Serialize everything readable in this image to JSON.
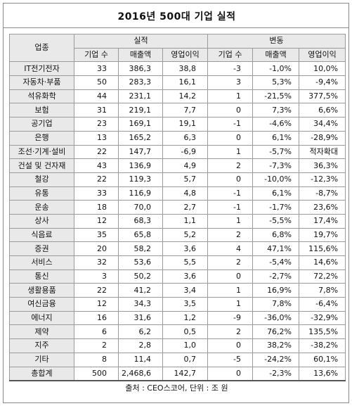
{
  "title": "2016년 500대 기업 실적",
  "header": {
    "category": "업종",
    "performance_group": "실적",
    "change_group": "변동",
    "sub": [
      "기업 수",
      "매출액",
      "영업이익",
      "기업 수",
      "매출액",
      "영업이익"
    ]
  },
  "rows": [
    {
      "name": "IT전기전자",
      "companies": "33",
      "sales": "386,3",
      "profit": "38,8",
      "d_companies": "-3",
      "d_sales": "-1,0%",
      "d_profit": "10,0%"
    },
    {
      "name": "자동차·부품",
      "companies": "50",
      "sales": "283,3",
      "profit": "16,1",
      "d_companies": "3",
      "d_sales": "5,3%",
      "d_profit": "-9,4%"
    },
    {
      "name": "석유화학",
      "companies": "44",
      "sales": "231,1",
      "profit": "14,2",
      "d_companies": "1",
      "d_sales": "-21,5%",
      "d_profit": "377,5%"
    },
    {
      "name": "보험",
      "companies": "31",
      "sales": "219,1",
      "profit": "7,7",
      "d_companies": "0",
      "d_sales": "7,3%",
      "d_profit": "6,6%"
    },
    {
      "name": "공기업",
      "companies": "23",
      "sales": "169,1",
      "profit": "19,1",
      "d_companies": "-1",
      "d_sales": "-4,6%",
      "d_profit": "34,4%"
    },
    {
      "name": "은행",
      "companies": "13",
      "sales": "165,2",
      "profit": "6,3",
      "d_companies": "0",
      "d_sales": "6,1%",
      "d_profit": "-28,9%"
    },
    {
      "name": "조선·기계·설비",
      "companies": "22",
      "sales": "147,7",
      "profit": "-6,9",
      "d_companies": "1",
      "d_sales": "-5,7%",
      "d_profit": "적자확대"
    },
    {
      "name": "건설 및 건자재",
      "companies": "43",
      "sales": "136,9",
      "profit": "4,9",
      "d_companies": "2",
      "d_sales": "-7,3%",
      "d_profit": "36,3%"
    },
    {
      "name": "철강",
      "companies": "22",
      "sales": "119,3",
      "profit": "5,7",
      "d_companies": "0",
      "d_sales": "-10,0%",
      "d_profit": "-12,3%"
    },
    {
      "name": "유통",
      "companies": "33",
      "sales": "116,9",
      "profit": "4,8",
      "d_companies": "-1",
      "d_sales": "6,1%",
      "d_profit": "-8,7%"
    },
    {
      "name": "운송",
      "companies": "18",
      "sales": "70,0",
      "profit": "2,7",
      "d_companies": "-1",
      "d_sales": "-1,7%",
      "d_profit": "23,6%"
    },
    {
      "name": "상사",
      "companies": "12",
      "sales": "68,3",
      "profit": "1,1",
      "d_companies": "1",
      "d_sales": "-5,5%",
      "d_profit": "17,4%"
    },
    {
      "name": "식음료",
      "companies": "35",
      "sales": "65,8",
      "profit": "5,2",
      "d_companies": "2",
      "d_sales": "6,8%",
      "d_profit": "19,7%"
    },
    {
      "name": "증권",
      "companies": "20",
      "sales": "58,2",
      "profit": "3,6",
      "d_companies": "4",
      "d_sales": "47,1%",
      "d_profit": "115,6%"
    },
    {
      "name": "서비스",
      "companies": "32",
      "sales": "53,6",
      "profit": "5,5",
      "d_companies": "2",
      "d_sales": "-5,4%",
      "d_profit": "14,6%"
    },
    {
      "name": "통신",
      "companies": "3",
      "sales": "50,2",
      "profit": "3,6",
      "d_companies": "0",
      "d_sales": "-2,7%",
      "d_profit": "72,2%"
    },
    {
      "name": "생활용품",
      "companies": "22",
      "sales": "41,2",
      "profit": "3,4",
      "d_companies": "1",
      "d_sales": "16,9%",
      "d_profit": "7,8%"
    },
    {
      "name": "여신금융",
      "companies": "12",
      "sales": "34,3",
      "profit": "3,5",
      "d_companies": "1",
      "d_sales": "7,8%",
      "d_profit": "-6,4%"
    },
    {
      "name": "에너지",
      "companies": "16",
      "sales": "31,6",
      "profit": "1,2",
      "d_companies": "-9",
      "d_sales": "-36,0%",
      "d_profit": "-32,9%"
    },
    {
      "name": "제약",
      "companies": "6",
      "sales": "6,2",
      "profit": "0,5",
      "d_companies": "2",
      "d_sales": "76,2%",
      "d_profit": "135,5%"
    },
    {
      "name": "지주",
      "companies": "2",
      "sales": "2,8",
      "profit": "1,0",
      "d_companies": "0",
      "d_sales": "38,2%",
      "d_profit": "-38,2%"
    },
    {
      "name": "기타",
      "companies": "8",
      "sales": "11,4",
      "profit": "0,7",
      "d_companies": "-5",
      "d_sales": "-24,2%",
      "d_profit": "60,1%"
    },
    {
      "name": "총합계",
      "companies": "500",
      "sales": "2,468,6",
      "profit": "142,7",
      "d_companies": "0",
      "d_sales": "-2,3%",
      "d_profit": "13,6%"
    }
  ],
  "source": "출처 : CEO스코어, 단위 : 조 원"
}
